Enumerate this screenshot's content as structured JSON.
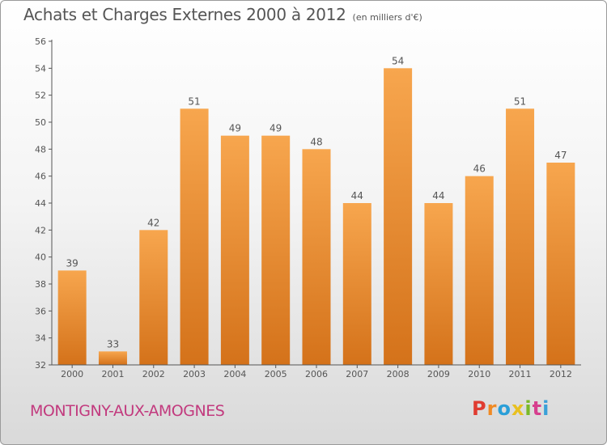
{
  "chart_data": {
    "type": "bar",
    "title": "Achats et Charges Externes 2000 à 2012",
    "subtitle": "(en milliers d'€)",
    "categories": [
      "2000",
      "2001",
      "2002",
      "2003",
      "2004",
      "2005",
      "2006",
      "2007",
      "2008",
      "2009",
      "2010",
      "2011",
      "2012"
    ],
    "values": [
      39,
      33,
      42,
      51,
      49,
      49,
      48,
      44,
      54,
      44,
      46,
      51,
      47
    ],
    "ylim": [
      32,
      56
    ],
    "yticks": [
      32,
      34,
      36,
      38,
      40,
      42,
      44,
      46,
      48,
      50,
      52,
      54,
      56
    ],
    "grid": false,
    "colors": {
      "bar_light": "#f7a64e",
      "bar_dark": "#d4721a",
      "axis": "#555555"
    }
  },
  "footer": {
    "place": "MONTIGNY-AUX-AMOGNES",
    "logo": "Proxiti",
    "logo_colors": [
      "#e03c31",
      "#f08a24",
      "#2a9fd8",
      "#e8c020",
      "#7ab929",
      "#d63f8e",
      "#3aa0d8"
    ]
  }
}
